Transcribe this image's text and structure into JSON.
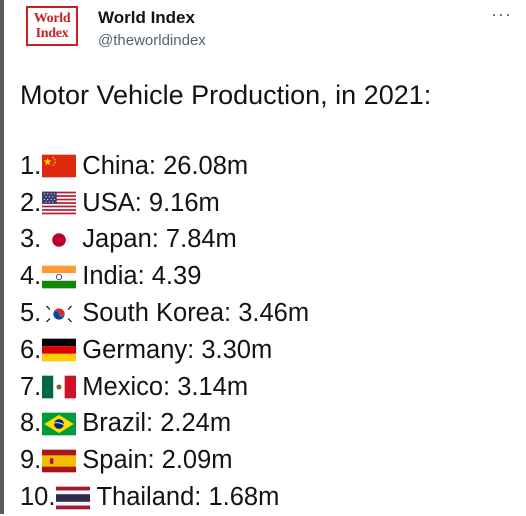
{
  "account": {
    "name": "World Index",
    "handle": "@theworldindex",
    "avatar_logo": [
      "World",
      "Index"
    ],
    "more_label": "···"
  },
  "tweet": {
    "title": "Motor Vehicle Production, in 2021:",
    "items": [
      {
        "rank": "1.",
        "flag": "china-flag-icon",
        "text": "China: 26.08m"
      },
      {
        "rank": "2.",
        "flag": "usa-flag-icon",
        "text": "USA: 9.16m"
      },
      {
        "rank": "3.",
        "flag": "japan-flag-icon",
        "text": "Japan: 7.84m"
      },
      {
        "rank": "4.",
        "flag": "india-flag-icon",
        "text": "India: 4.39"
      },
      {
        "rank": "5.",
        "flag": "south-korea-flag-icon",
        "text": "South Korea: 3.46m"
      },
      {
        "rank": "6.",
        "flag": "germany-flag-icon",
        "text": "Germany: 3.30m"
      },
      {
        "rank": "7.",
        "flag": "mexico-flag-icon",
        "text": "Mexico: 3.14m"
      },
      {
        "rank": "8.",
        "flag": "brazil-flag-icon",
        "text": "Brazil: 2.24m"
      },
      {
        "rank": "9.",
        "flag": "spain-flag-icon",
        "text": "Spain: 2.09m"
      },
      {
        "rank": "10.",
        "flag": "thailand-flag-icon",
        "text": "Thailand: 1.68m"
      }
    ]
  },
  "colors": {
    "text": "#0f1419",
    "secondary": "#536471",
    "avatar_red": "#c6231f"
  }
}
